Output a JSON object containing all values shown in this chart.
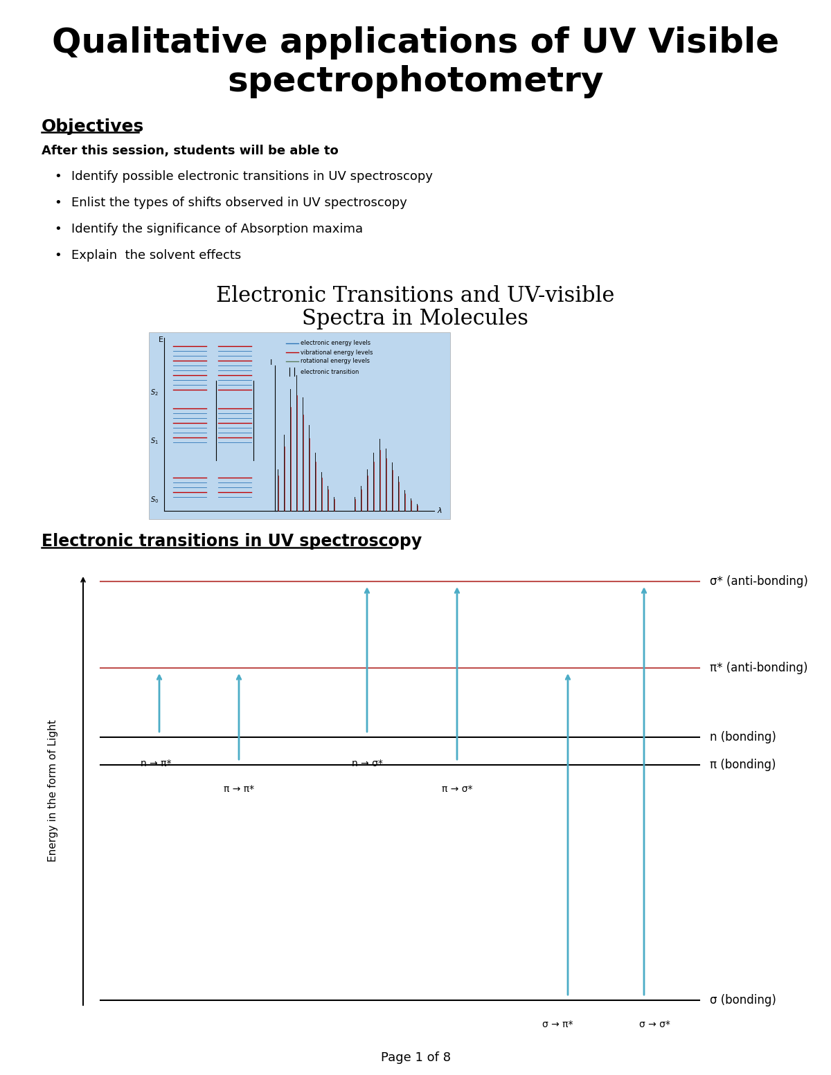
{
  "title_line1": "Qualitative applications of UV Visible",
  "title_line2": "spectrophotometry",
  "objectives_header": "Objectives",
  "session_text": "After this session, students will be able to",
  "bullets": [
    "Identify possible electronic transitions in UV spectroscopy",
    "Enlist the types of shifts observed in UV spectroscopy",
    "Identify the significance of Absorption maxima",
    "Explain  the solvent effects"
  ],
  "diagram1_title_line1": "Electronic Transitions and UV-visible",
  "diagram1_title_line2": "Spectra in Molecules",
  "diagram1_bg": "#bdd7ee",
  "section2_header": "Electronic transitions in UV spectroscopy",
  "sigma_star_label": "σ* (anti-bonding)",
  "pi_star_label": "π* (anti-bonding)",
  "n_label": "n (bonding)",
  "pi_label": "π (bonding)",
  "sigma_label": "σ (bonding)",
  "sigma_star_color": "#c0504d",
  "pi_star_color": "#c0504d",
  "n_color": "#000000",
  "pi_color": "#000000",
  "sigma_color": "#000000",
  "arrow_color": "#4bacc6",
  "page_footer": "Page 1 of 8",
  "bg_color": "#ffffff",
  "text_color": "#000000"
}
